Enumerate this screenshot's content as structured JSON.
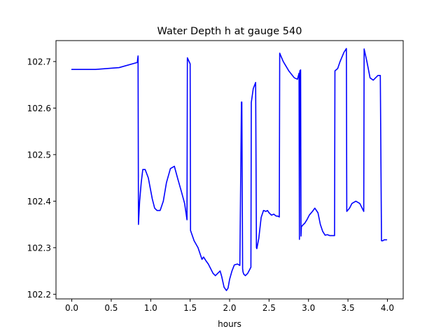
{
  "chart_data": {
    "type": "line",
    "title": "Water Depth h at gauge 540",
    "xlabel": "hours",
    "ylabel": "",
    "xlim": [
      -0.2,
      4.2
    ],
    "ylim": [
      102.19,
      102.745
    ],
    "xticks": [
      0.0,
      0.5,
      1.0,
      1.5,
      2.0,
      2.5,
      3.0,
      3.5,
      4.0
    ],
    "xtick_labels": [
      "0.0",
      "0.5",
      "1.0",
      "1.5",
      "2.0",
      "2.5",
      "3.0",
      "3.5",
      "4.0"
    ],
    "yticks": [
      102.2,
      102.3,
      102.4,
      102.5,
      102.6,
      102.7
    ],
    "ytick_labels": [
      "102.2",
      "102.3",
      "102.4",
      "102.5",
      "102.6",
      "102.7"
    ],
    "grid": false,
    "legend": "none",
    "colors": {
      "line": "#0000ff",
      "axes": "#000000",
      "background": "#ffffff"
    },
    "series": [
      {
        "x": [
          0.0,
          0.3,
          0.6,
          0.83,
          0.84,
          0.845,
          0.86,
          0.88,
          0.9,
          0.93,
          0.97,
          1.02,
          1.05,
          1.08,
          1.12,
          1.16,
          1.2,
          1.25,
          1.3,
          1.34,
          1.39,
          1.43,
          1.46,
          1.465,
          1.5,
          1.505,
          1.55,
          1.6,
          1.63,
          1.65,
          1.67,
          1.7,
          1.73,
          1.76,
          1.79,
          1.82,
          1.85,
          1.88,
          1.9,
          1.93,
          1.96,
          1.98,
          2.0,
          2.03,
          2.06,
          2.1,
          2.13,
          2.15,
          2.155,
          2.165,
          2.17,
          2.18,
          2.2,
          2.23,
          2.27,
          2.275,
          2.3,
          2.33,
          2.34,
          2.345,
          2.37,
          2.4,
          2.43,
          2.46,
          2.48,
          2.5,
          2.53,
          2.56,
          2.59,
          2.61,
          2.63,
          2.635,
          2.68,
          2.75,
          2.82,
          2.86,
          2.88,
          2.885,
          2.89,
          2.9,
          2.905,
          2.91,
          2.935,
          2.95,
          2.98,
          3.01,
          3.05,
          3.08,
          3.12,
          3.15,
          3.18,
          3.21,
          3.24,
          3.27,
          3.3,
          3.33,
          3.335,
          3.37,
          3.4,
          3.45,
          3.48,
          3.485,
          3.52,
          3.55,
          3.6,
          3.65,
          3.7,
          3.705,
          3.74,
          3.78,
          3.82,
          3.88,
          3.91,
          3.925,
          3.94,
          3.96,
          3.99
        ],
        "y": [
          102.683,
          102.683,
          102.687,
          102.698,
          102.712,
          102.35,
          102.4,
          102.44,
          102.468,
          102.468,
          102.45,
          102.405,
          102.385,
          102.38,
          102.38,
          102.4,
          102.44,
          102.47,
          102.475,
          102.45,
          102.42,
          102.395,
          102.36,
          102.708,
          102.695,
          102.337,
          102.315,
          102.3,
          102.285,
          102.275,
          102.28,
          102.272,
          102.265,
          102.255,
          102.245,
          102.24,
          102.245,
          102.25,
          102.238,
          102.215,
          102.208,
          102.213,
          102.232,
          102.25,
          102.263,
          102.265,
          102.262,
          102.613,
          102.613,
          102.255,
          102.248,
          102.243,
          102.24,
          102.245,
          102.258,
          102.612,
          102.642,
          102.655,
          102.3,
          102.298,
          102.32,
          102.365,
          102.38,
          102.378,
          102.38,
          102.375,
          102.37,
          102.372,
          102.368,
          102.368,
          102.366,
          102.718,
          102.7,
          102.68,
          102.665,
          102.662,
          102.675,
          102.318,
          102.68,
          102.682,
          102.325,
          102.345,
          102.35,
          102.352,
          102.36,
          102.37,
          102.378,
          102.385,
          102.375,
          102.35,
          102.335,
          102.327,
          102.328,
          102.326,
          102.326,
          102.326,
          102.68,
          102.685,
          102.7,
          102.72,
          102.728,
          102.378,
          102.385,
          102.395,
          102.4,
          102.395,
          102.378,
          102.727,
          102.7,
          102.665,
          102.66,
          102.67,
          102.67,
          102.315,
          102.315,
          102.317,
          102.317
        ]
      }
    ]
  }
}
